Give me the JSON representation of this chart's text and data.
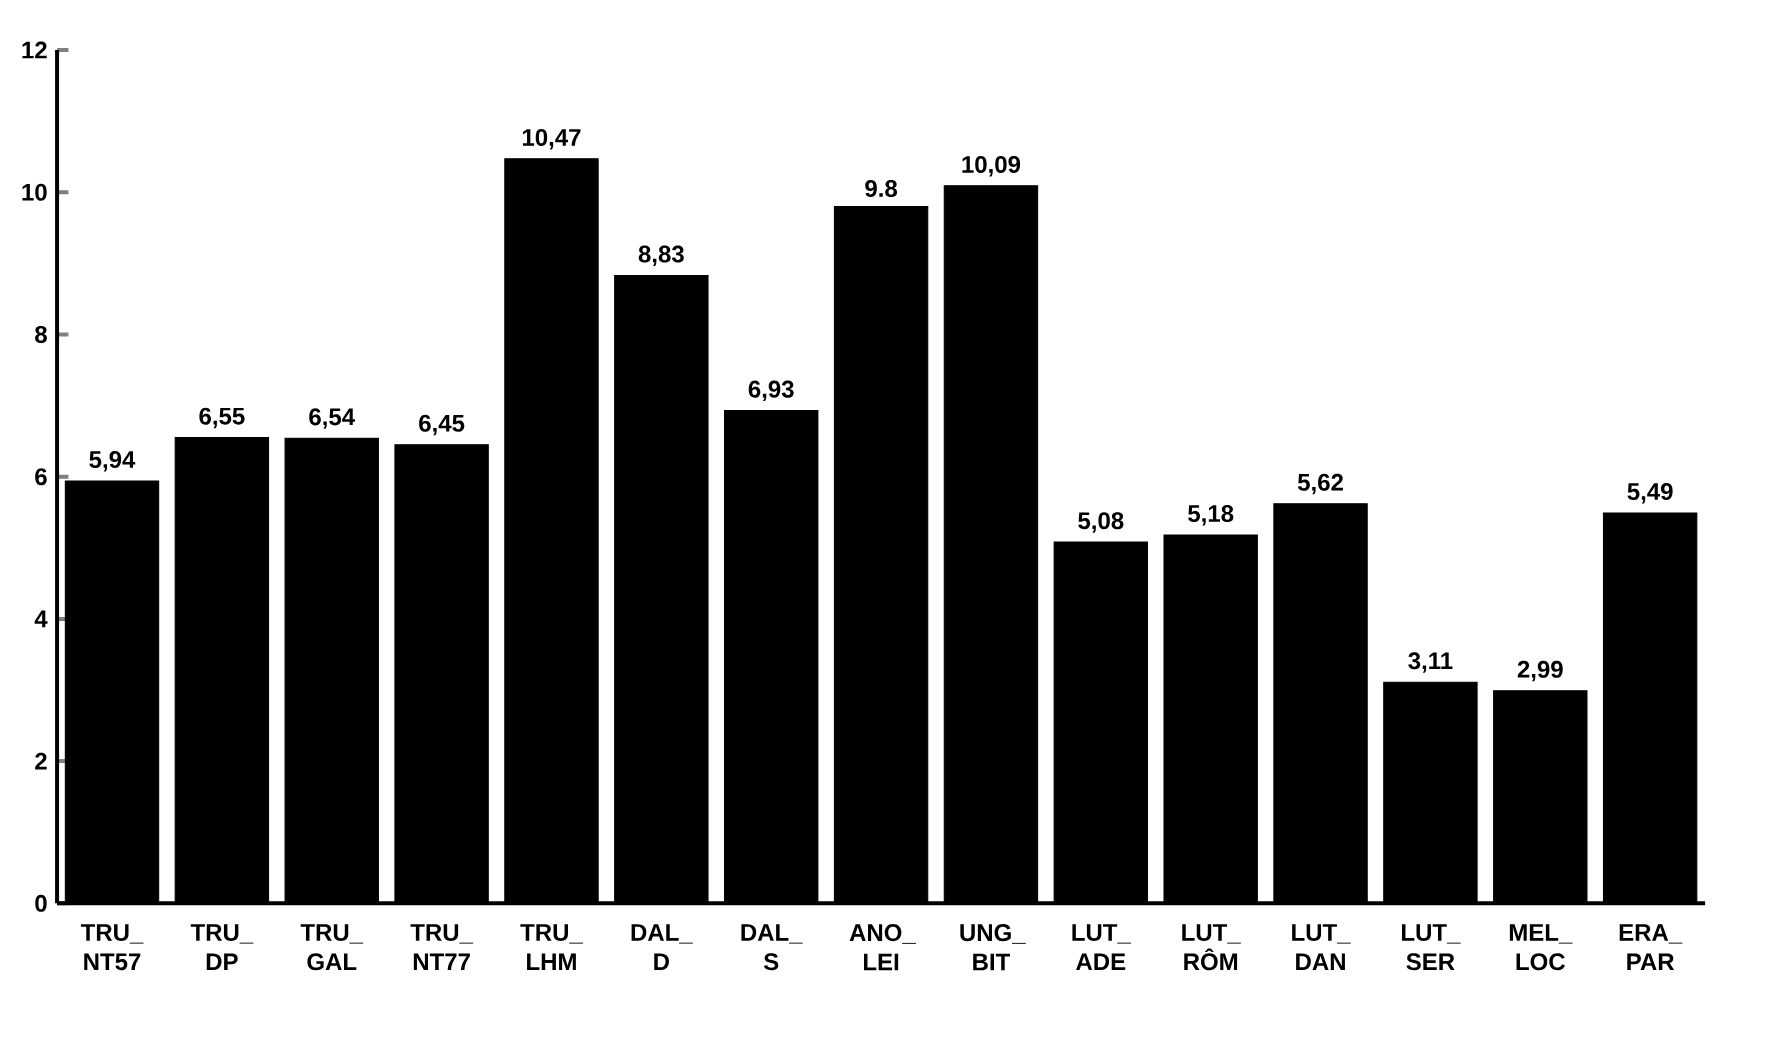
{
  "chart_data": {
    "type": "bar",
    "categories": [
      "TRU_ NT57",
      "TRU_ DP",
      "TRU_ GAL",
      "TRU_ NT77",
      "TRU_ LHM",
      "DAL_ D",
      "DAL_ S",
      "ANO_ LEI",
      "UNG_ BIT",
      "LUT_ ADE",
      "LUT_ RÔM",
      "LUT_ DAN",
      "LUT_ SER",
      "MEL_ LOC",
      "ERA_ PAR"
    ],
    "values": [
      5.94,
      6.55,
      6.54,
      6.45,
      10.47,
      8.83,
      6.93,
      9.8,
      10.09,
      5.08,
      5.18,
      5.62,
      3.11,
      2.99,
      5.49
    ],
    "value_labels": [
      "5,94",
      "6,55",
      "6,54",
      "6,45",
      "10,47",
      "8,83",
      "6,93",
      "9.8",
      "10,09",
      "5,08",
      "5,18",
      "5,62",
      "3,11",
      "2,99",
      "5,49"
    ],
    "color": "#000000",
    "ylim": [
      0,
      12
    ],
    "yticks": [
      0,
      2,
      4,
      6,
      8,
      10,
      12
    ],
    "grid": false
  }
}
